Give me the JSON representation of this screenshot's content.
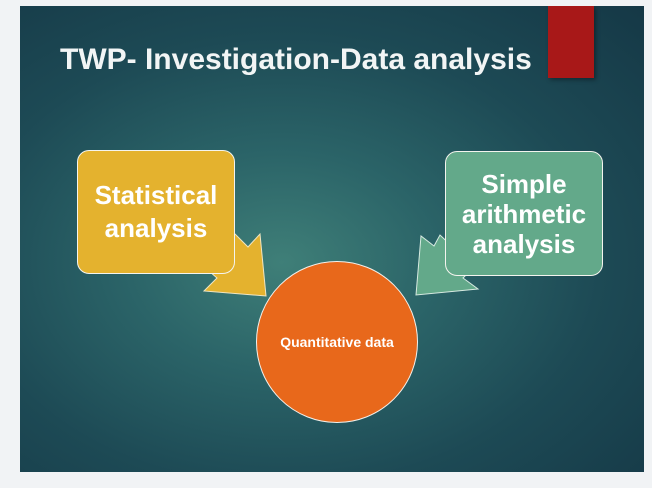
{
  "slide": {
    "title": "TWP- Investigation-Data analysis",
    "colors": {
      "background": "#2b6468",
      "accent_tab": "#a81818",
      "statistical_box": "#e4b22e",
      "simple_box": "#63a98a",
      "center_circle": "#e8681b"
    }
  },
  "diagram": {
    "left_box": {
      "line1": "Statistical",
      "line2": "analysis"
    },
    "right_box": {
      "line1": "Simple",
      "line2": "arithmetic",
      "line3": "analysis"
    },
    "center": {
      "line1": "Quantitative",
      "line2": "data"
    }
  }
}
